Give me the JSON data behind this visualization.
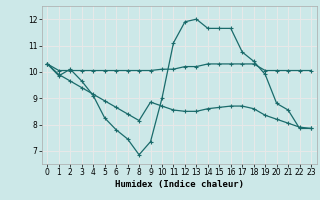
{
  "xlabel": "Humidex (Indice chaleur)",
  "background_color": "#cce8e8",
  "grid_color": "#e8e8e8",
  "line_color": "#1a6b6b",
  "xlim": [
    -0.5,
    23.5
  ],
  "ylim": [
    6.5,
    12.5
  ],
  "xticks": [
    0,
    1,
    2,
    3,
    4,
    5,
    6,
    7,
    8,
    9,
    10,
    11,
    12,
    13,
    14,
    15,
    16,
    17,
    18,
    19,
    20,
    21,
    22,
    23
  ],
  "yticks": [
    7,
    8,
    9,
    10,
    11,
    12
  ],
  "series1_x": [
    0,
    1,
    2,
    3,
    4,
    5,
    6,
    7,
    8,
    9,
    10,
    11,
    12,
    13,
    14,
    15,
    16,
    17,
    18,
    19,
    20,
    21,
    22,
    23
  ],
  "series1_y": [
    10.3,
    9.85,
    10.1,
    9.65,
    9.1,
    8.25,
    7.8,
    7.45,
    6.85,
    7.35,
    9.0,
    11.1,
    11.9,
    12.0,
    11.65,
    11.65,
    11.65,
    10.75,
    10.4,
    9.9,
    8.8,
    8.55,
    7.85,
    7.85
  ],
  "series2_x": [
    0,
    1,
    2,
    3,
    4,
    5,
    6,
    7,
    8,
    9,
    10,
    11,
    12,
    13,
    14,
    15,
    16,
    17,
    18,
    19,
    20,
    21,
    22,
    23
  ],
  "series2_y": [
    10.3,
    10.05,
    10.05,
    10.05,
    10.05,
    10.05,
    10.05,
    10.05,
    10.05,
    10.05,
    10.1,
    10.1,
    10.2,
    10.2,
    10.3,
    10.3,
    10.3,
    10.3,
    10.3,
    10.05,
    10.05,
    10.05,
    10.05,
    10.05
  ],
  "series3_x": [
    0,
    1,
    2,
    3,
    4,
    5,
    6,
    7,
    8,
    9,
    10,
    11,
    12,
    13,
    14,
    15,
    16,
    17,
    18,
    19,
    20,
    21,
    22,
    23
  ],
  "series3_y": [
    10.3,
    9.9,
    9.65,
    9.4,
    9.15,
    8.9,
    8.65,
    8.4,
    8.15,
    8.85,
    8.7,
    8.55,
    8.5,
    8.5,
    8.6,
    8.65,
    8.7,
    8.7,
    8.6,
    8.35,
    8.2,
    8.05,
    7.9,
    7.85
  ]
}
